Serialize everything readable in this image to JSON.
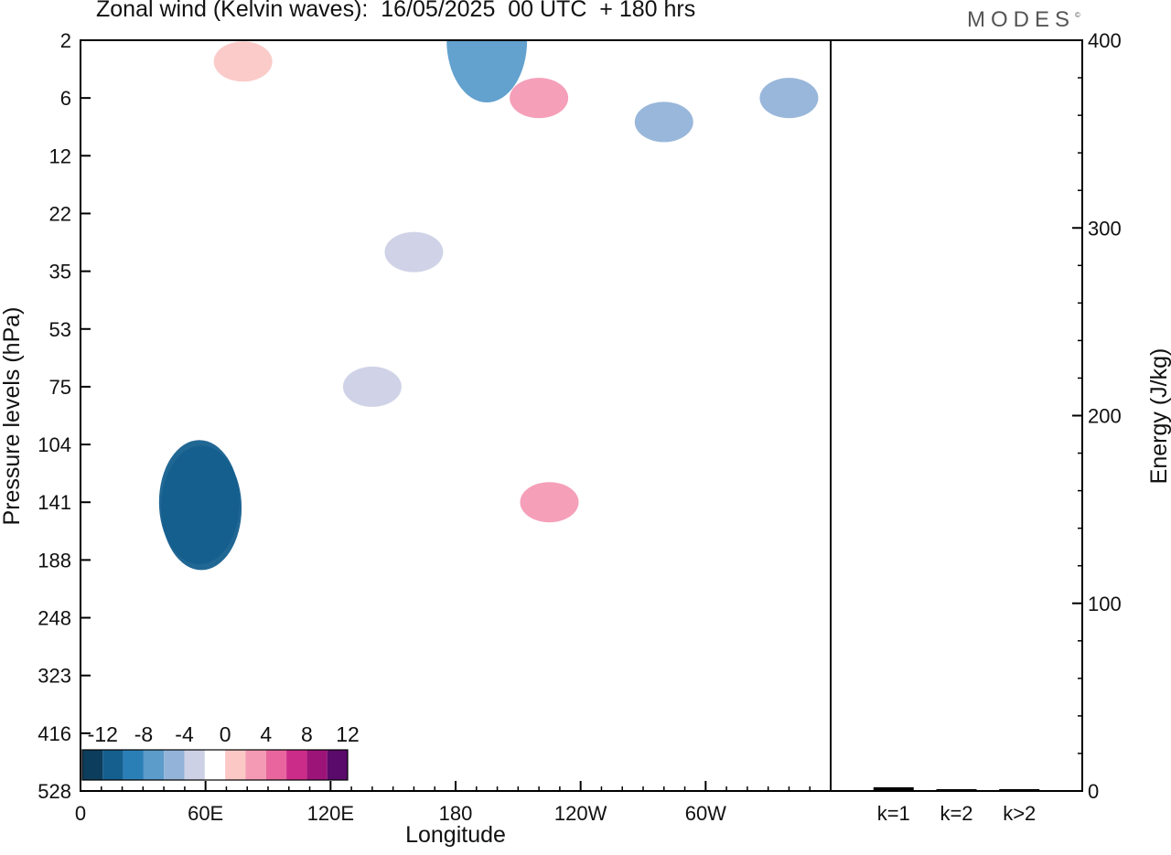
{
  "header": {
    "title": "Zonal wind (Kelvin waves):  16/05/2025  00 UTC  + 180 hrs",
    "brand": "MODES",
    "brand_mark": "©"
  },
  "chart_data": [
    {
      "type": "heatmap",
      "title": "Zonal wind (Kelvin waves):  16/05/2025  00 UTC  + 180 hrs",
      "xlabel": "Longitude",
      "ylabel": "Pressure levels (hPa)",
      "x_ticks": [
        "0",
        "60E",
        "120E",
        "180",
        "120W",
        "60W"
      ],
      "x_tick_values": [
        0,
        60,
        120,
        180,
        240,
        300
      ],
      "xlim": [
        0,
        360
      ],
      "y_ticks": [
        "2",
        "6",
        "12",
        "22",
        "35",
        "53",
        "75",
        "104",
        "141",
        "188",
        "248",
        "323",
        "416",
        "528"
      ],
      "colorbar": {
        "labels": [
          "-12",
          "-8",
          "-4",
          "0",
          "4",
          "8",
          "12"
        ],
        "levels": [
          -14,
          -12,
          -10,
          -8,
          -6,
          -4,
          -2,
          2,
          4,
          6,
          8,
          10,
          12,
          14
        ],
        "colors": [
          "#0d3d5c",
          "#155f8e",
          "#2b7fb7",
          "#5b9ccb",
          "#93b3d8",
          "#cdd1e6",
          "#ffffff",
          "#fbc8c6",
          "#f49ab5",
          "#e8669d",
          "#cc2c89",
          "#9c1478",
          "#5a0a6b"
        ]
      },
      "anomalies": [
        {
          "lon": 57,
          "level": 141,
          "value": -12
        },
        {
          "lon": 58,
          "level": 145,
          "value": -14
        },
        {
          "lon": 195,
          "level": 2,
          "value": -8
        },
        {
          "lon": 340,
          "level": 6,
          "value": -6
        },
        {
          "lon": 280,
          "level": 8,
          "value": -4
        },
        {
          "lon": 225,
          "level": 141,
          "value": 6
        },
        {
          "lon": 220,
          "level": 6,
          "value": 6
        },
        {
          "lon": 78,
          "level": 3,
          "value": 5
        },
        {
          "lon": 140,
          "level": 75,
          "value": -2
        },
        {
          "lon": 160,
          "level": 30,
          "value": -2
        }
      ]
    },
    {
      "type": "bar",
      "categories": [
        "k=1",
        "k=2",
        "k>2"
      ],
      "values": [
        2,
        0.5,
        1
      ],
      "ylabel": "Energy (J/kg)",
      "ylim": [
        0,
        400
      ],
      "y_ticks": [
        0,
        100,
        200,
        300,
        400
      ],
      "bar_color": "#000000"
    }
  ]
}
